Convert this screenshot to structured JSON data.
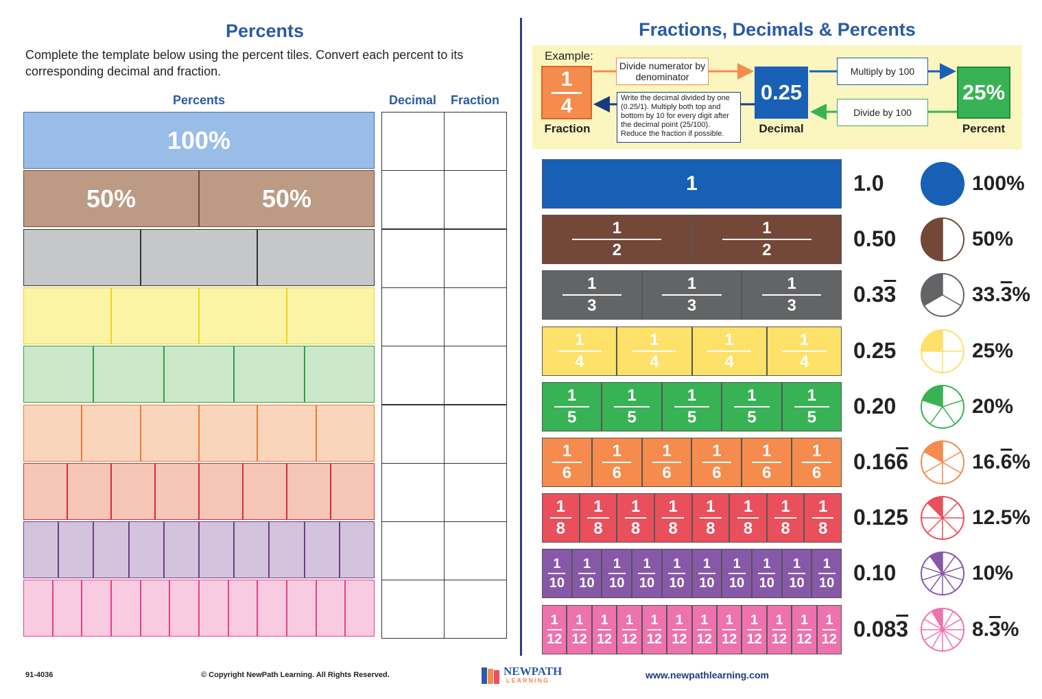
{
  "left": {
    "title": "Percents",
    "instructions": "Complete the template below using the percent tiles. Convert each percent to its corresponding decimal and fraction.",
    "col_percents": "Percents",
    "col_decimal": "Decimal",
    "col_fraction": "Fraction",
    "rows": [
      {
        "parts": 1,
        "fill": "#99bde6",
        "border": "#3d6fb5",
        "labels": [
          "100%"
        ]
      },
      {
        "parts": 2,
        "fill": "#bc9a83",
        "border": "#6b4a3a",
        "labels": [
          "50%",
          "50%"
        ]
      },
      {
        "parts": 3,
        "fill": "#c6c7c9",
        "border": "#333333",
        "labels": []
      },
      {
        "parts": 4,
        "fill": "#fbf3a6",
        "border": "#f1d21f",
        "labels": []
      },
      {
        "parts": 5,
        "fill": "#cde8c9",
        "border": "#2e9e48",
        "labels": []
      },
      {
        "parts": 6,
        "fill": "#f9d5bc",
        "border": "#ea7a35",
        "labels": []
      },
      {
        "parts": 8,
        "fill": "#f5c6b8",
        "border": "#d9283a",
        "labels": []
      },
      {
        "parts": 10,
        "fill": "#d4c3dd",
        "border": "#6a3e86",
        "labels": []
      },
      {
        "parts": 12,
        "fill": "#f8cbe1",
        "border": "#e2418f",
        "labels": []
      }
    ]
  },
  "right": {
    "title": "Fractions, Decimals & Percents",
    "example": {
      "label": "Example:",
      "fraction_num": "1",
      "fraction_den": "4",
      "fraction_caption": "Fraction",
      "decimal_value": "0.25",
      "decimal_caption": "Decimal",
      "percent_value": "25%",
      "percent_caption": "Percent",
      "step_divide": "Divide numerator by denominator",
      "step_multiply": "Multiply by 100",
      "step_divide100": "Divide by 100",
      "step_writeup": "Write the decimal divided by one (0.25/1). Multiply both top and bottom by 10 for every digit after the decimal point (25/100). Reduce the fraction if possible."
    },
    "rows": [
      {
        "den": 1,
        "color": "#1760b5",
        "pie_color": "#1760b5",
        "decimal": "1.0",
        "decimal_rep": "",
        "percent": "100%",
        "percent_rep": "",
        "percent_tail": ""
      },
      {
        "den": 2,
        "color": "#734838",
        "pie_color": "#734838",
        "decimal": "0.50",
        "decimal_rep": "",
        "percent": "50%",
        "percent_rep": "",
        "percent_tail": ""
      },
      {
        "den": 3,
        "color": "#636466",
        "pie_color": "#636466",
        "decimal": "0.3",
        "decimal_rep": "3",
        "percent": "33.",
        "percent_rep": "3",
        "percent_tail": "%"
      },
      {
        "den": 4,
        "color": "#fde168",
        "pie_color": "#fde168",
        "decimal": "0.25",
        "decimal_rep": "",
        "percent": "25%",
        "percent_rep": "",
        "percent_tail": ""
      },
      {
        "den": 5,
        "color": "#37b355",
        "pie_color": "#37b355",
        "decimal": "0.20",
        "decimal_rep": "",
        "percent": "20%",
        "percent_rep": "",
        "percent_tail": ""
      },
      {
        "den": 6,
        "color": "#f58b4c",
        "pie_color": "#f58b4c",
        "decimal": "0.16",
        "decimal_rep": "6",
        "percent": "16.",
        "percent_rep": "6",
        "percent_tail": "%"
      },
      {
        "den": 8,
        "color": "#ea4f5c",
        "pie_color": "#ea4f5c",
        "decimal": "0.125",
        "decimal_rep": "",
        "percent": "12.5%",
        "percent_rep": "",
        "percent_tail": ""
      },
      {
        "den": 10,
        "color": "#8658a7",
        "pie_color": "#8658a7",
        "decimal": "0.10",
        "decimal_rep": "",
        "percent": "10%",
        "percent_rep": "",
        "percent_tail": ""
      },
      {
        "den": 12,
        "color": "#ee72ae",
        "pie_color": "#ee72ae",
        "decimal": "0.08",
        "decimal_rep": "3",
        "percent": "8.",
        "percent_rep": "3",
        "percent_tail": "%"
      }
    ]
  },
  "footer": {
    "code": "91-4036",
    "copyright": "© Copyright NewPath Learning. All Rights Reserved.",
    "logo_top": "NEWPATH",
    "logo_bottom": "LEARNING",
    "website": "www.newpathlearning.com"
  }
}
